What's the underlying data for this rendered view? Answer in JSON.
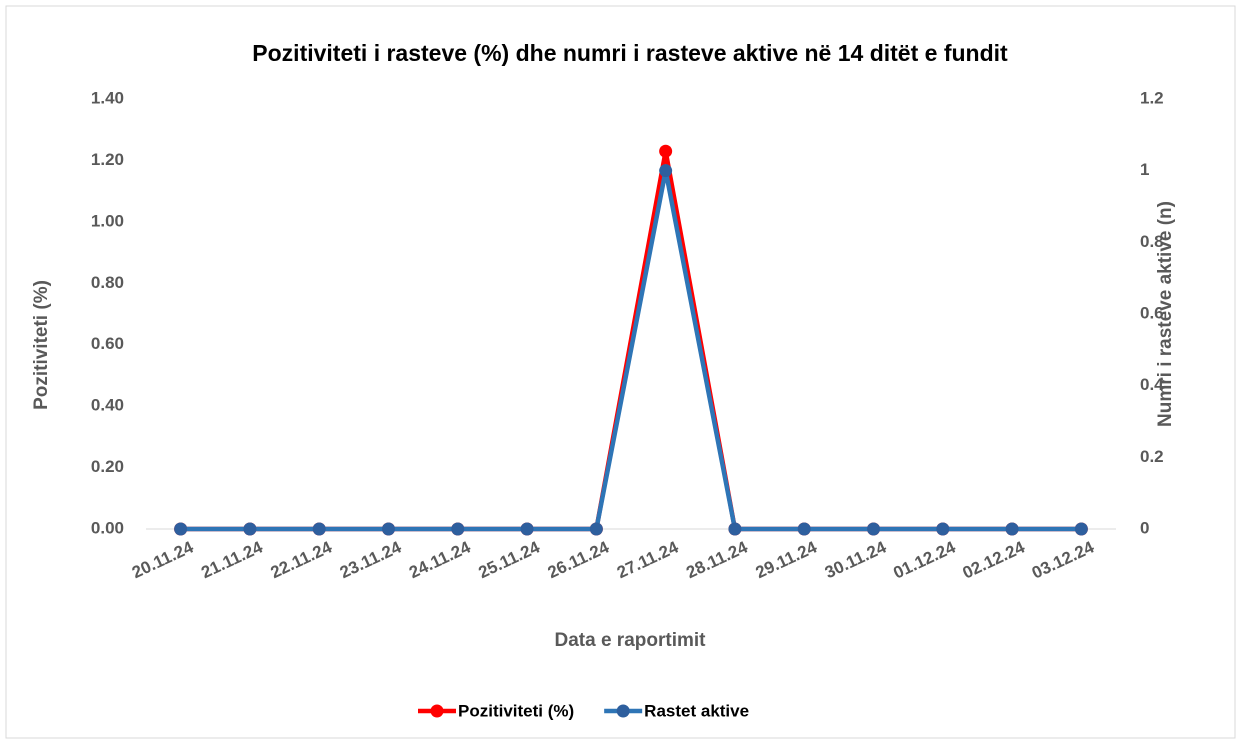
{
  "chart_data": {
    "type": "line",
    "title": "Pozitiviteti i rasteve (%) dhe numri i rasteve aktive në 14 ditët e fundit",
    "xlabel": "Data e raportimit",
    "ylabel": "Pozitiviteti (%)",
    "y2label": "Numri i rasteve aktive (n)",
    "categories": [
      "20.11.24",
      "21.11.24",
      "22.11.24",
      "23.11.24",
      "24.11.24",
      "25.11.24",
      "26.11.24",
      "27.11.24",
      "28.11.24",
      "29.11.24",
      "30.11.24",
      "01.12.24",
      "02.12.24",
      "03.12.24"
    ],
    "series": [
      {
        "name": "Pozitiviteti (%)",
        "color": "#ff0000",
        "values": [
          0,
          0,
          0,
          0,
          0,
          0,
          0,
          1.23,
          0,
          0,
          0,
          0,
          0,
          0
        ]
      },
      {
        "name": "Rastet aktive",
        "color": "#2e75b6",
        "axis": "y2",
        "values": [
          0,
          0,
          0,
          0,
          0,
          0,
          0,
          1,
          0,
          0,
          0,
          0,
          0,
          0
        ]
      }
    ],
    "ylim": [
      0,
      1.4
    ],
    "yticks": [
      {
        "value": 0,
        "label": "0.00"
      },
      {
        "value": 0.2,
        "label": "0.20"
      },
      {
        "value": 0.4,
        "label": "0.40"
      },
      {
        "value": 0.6,
        "label": "0.60"
      },
      {
        "value": 0.8,
        "label": "0.80"
      },
      {
        "value": 1,
        "label": "1.00"
      },
      {
        "value": 1.2,
        "label": "1.20"
      },
      {
        "value": 1.4,
        "label": "1.40"
      }
    ],
    "y2lim": [
      0,
      1.2
    ],
    "y2ticks": [
      0,
      0.2,
      0.4,
      0.6,
      0.8,
      1,
      1.2
    ],
    "grid": false,
    "legend": "bottom"
  }
}
